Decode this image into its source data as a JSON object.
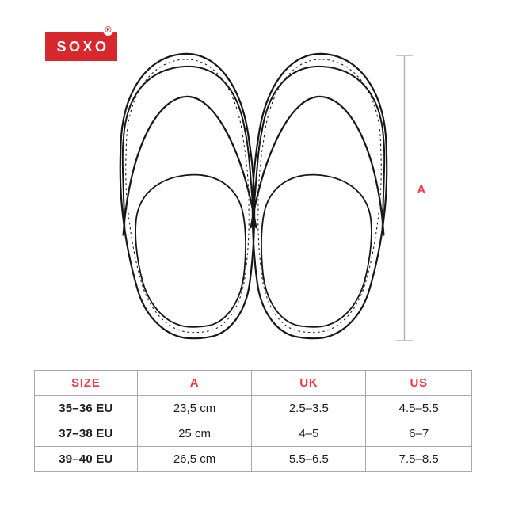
{
  "brand": {
    "name": "SOXO",
    "registered_mark": "®"
  },
  "diagram": {
    "dimension_label": "A"
  },
  "colors": {
    "brand_red": "#d7282e",
    "accent_red": "#f43740",
    "line_gray": "#b6b6b6",
    "drawing_black": "#171717",
    "table_border": "#a9a9a9",
    "text_dark": "#1c1c1c"
  },
  "table": {
    "columns": [
      "SIZE",
      "A",
      "UK",
      "US"
    ],
    "rows": [
      [
        "35–36 EU",
        "23,5 cm",
        "2.5–3.5",
        "4.5–5.5"
      ],
      [
        "37–38 EU",
        "25 cm",
        "4–5",
        "6–7"
      ],
      [
        "39–40 EU",
        "26,5 cm",
        "5.5–6.5",
        "7.5–8.5"
      ]
    ]
  }
}
